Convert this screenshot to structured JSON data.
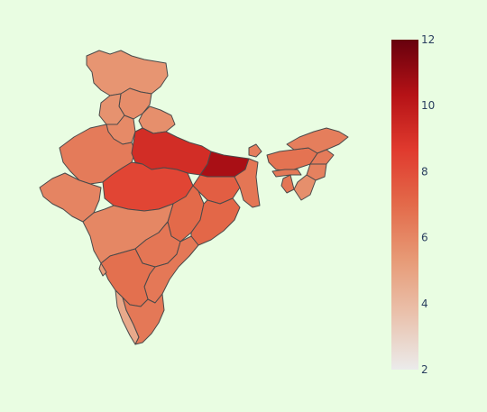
{
  "colors": {
    "background": "#e9fde2",
    "border": "#4a4a4a",
    "scale": [
      "#ebebeb",
      "#eac2ad",
      "#e79a76",
      "#e36a4a",
      "#e03a2e",
      "#b51216",
      "#67000d"
    ]
  },
  "colorbar": {
    "min": 2,
    "max": 12,
    "ticks": [
      "12",
      "10",
      "8",
      "6",
      "4",
      "2"
    ],
    "tick_values": [
      12,
      10,
      8,
      6,
      4,
      2
    ]
  },
  "chart_data": {
    "type": "choropleth",
    "colorscale": "Reds",
    "range": [
      2,
      12
    ],
    "regions": [
      {
        "id": "jammu-kashmir",
        "value": 5.5
      },
      {
        "id": "himachal-pradesh",
        "value": 5.8
      },
      {
        "id": "punjab",
        "value": 5.6
      },
      {
        "id": "haryana",
        "value": 5.9
      },
      {
        "id": "uttarakhand",
        "value": 5.7
      },
      {
        "id": "rajasthan",
        "value": 6.4
      },
      {
        "id": "uttar-pradesh",
        "value": 9.2
      },
      {
        "id": "bihar",
        "value": 10.6
      },
      {
        "id": "gujarat",
        "value": 6.1
      },
      {
        "id": "madhya-pradesh",
        "value": 8.3
      },
      {
        "id": "jharkhand",
        "value": 7.4
      },
      {
        "id": "west-bengal",
        "value": 6.6
      },
      {
        "id": "chhattisgarh",
        "value": 7.0
      },
      {
        "id": "odisha",
        "value": 7.1
      },
      {
        "id": "maharashtra",
        "value": 6.0
      },
      {
        "id": "telangana",
        "value": 6.6
      },
      {
        "id": "andhra-pradesh",
        "value": 6.5
      },
      {
        "id": "karnataka",
        "value": 6.8
      },
      {
        "id": "goa",
        "value": 5.2
      },
      {
        "id": "kerala",
        "value": 4.7
      },
      {
        "id": "tamil-nadu",
        "value": 6.5
      },
      {
        "id": "sikkim",
        "value": 6.3
      },
      {
        "id": "assam",
        "value": 6.7
      },
      {
        "id": "arunachal-pradesh",
        "value": 6.3
      },
      {
        "id": "nagaland",
        "value": 6.4
      },
      {
        "id": "manipur",
        "value": 6.2
      },
      {
        "id": "mizoram",
        "value": 5.7
      },
      {
        "id": "tripura",
        "value": 6.6
      },
      {
        "id": "meghalaya",
        "value": 6.5
      }
    ]
  }
}
